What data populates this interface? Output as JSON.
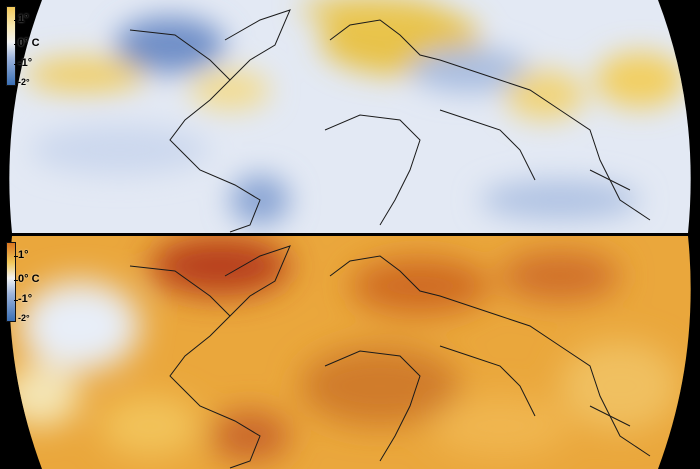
{
  "legend": {
    "unit": "C",
    "labels": [
      "1°",
      "0° C",
      "-1°",
      "-2°"
    ]
  },
  "colors": {
    "cold": "#3a6fb5",
    "cool": "#c9d6ec",
    "neutral": "#f3f3f3",
    "warm": "#f2c95a",
    "hot": "#d9751f",
    "very_hot": "#b8401a"
  }
}
